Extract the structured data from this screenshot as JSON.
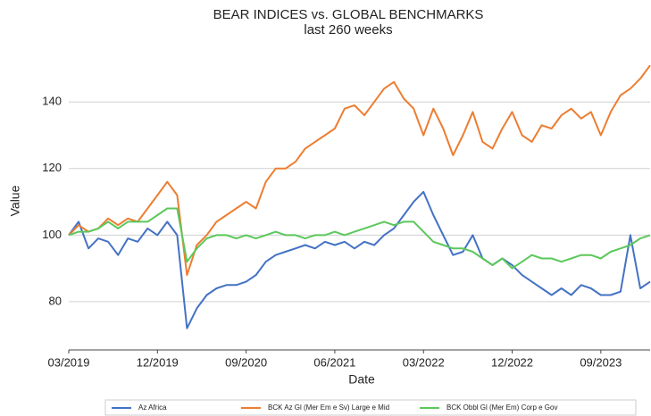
{
  "chart_data": {
    "type": "line",
    "title": "BEAR INDICES vs. GLOBAL BENCHMARKS",
    "subtitle": "last 260 weeks",
    "xlabel": "Date",
    "ylabel": "Value",
    "x": [
      "03/2019",
      "04/2019",
      "05/2019",
      "06/2019",
      "07/2019",
      "08/2019",
      "09/2019",
      "10/2019",
      "11/2019",
      "12/2019",
      "01/2020",
      "02/2020",
      "03/2020",
      "04/2020",
      "05/2020",
      "06/2020",
      "07/2020",
      "08/2020",
      "09/2020",
      "10/2020",
      "11/2020",
      "12/2020",
      "01/2021",
      "02/2021",
      "03/2021",
      "04/2021",
      "05/2021",
      "06/2021",
      "07/2021",
      "08/2021",
      "09/2021",
      "10/2021",
      "11/2021",
      "12/2021",
      "01/2022",
      "02/2022",
      "03/2022",
      "04/2022",
      "05/2022",
      "06/2022",
      "07/2022",
      "08/2022",
      "09/2022",
      "10/2022",
      "11/2022",
      "12/2022",
      "01/2023",
      "02/2023",
      "03/2023",
      "04/2023",
      "05/2023",
      "06/2023",
      "07/2023",
      "08/2023",
      "09/2023",
      "10/2023",
      "11/2023",
      "12/2023",
      "01/2024",
      "02/2024"
    ],
    "xticks": [
      "03/2019",
      "12/2019",
      "09/2020",
      "06/2021",
      "03/2022",
      "12/2022",
      "09/2023"
    ],
    "ylim": [
      65.5,
      154
    ],
    "yticks": [
      80,
      100,
      120,
      140
    ],
    "grid": true,
    "legend": "bottom",
    "series": [
      {
        "name": "Az Africa",
        "color": "#4472c4",
        "values": [
          100,
          104,
          96,
          99,
          98,
          94,
          99,
          98,
          102,
          100,
          104,
          100,
          72,
          78,
          82,
          84,
          85,
          85,
          86,
          88,
          92,
          94,
          95,
          96,
          97,
          96,
          98,
          97,
          98,
          96,
          98,
          97,
          100,
          102,
          106,
          110,
          113,
          106,
          100,
          94,
          95,
          100,
          93,
          91,
          93,
          91,
          88,
          86,
          84,
          82,
          84,
          82,
          85,
          84,
          82,
          82,
          83,
          100,
          84,
          86
        ]
      },
      {
        "name": "BCK Az Gl (Mer Em e Sv) Large e Mid",
        "color": "#ed7d31",
        "values": [
          100,
          103,
          101,
          102,
          105,
          103,
          105,
          104,
          108,
          112,
          116,
          112,
          88,
          97,
          100,
          104,
          106,
          108,
          110,
          108,
          116,
          120,
          120,
          122,
          126,
          128,
          130,
          132,
          138,
          139,
          136,
          140,
          144,
          146,
          141,
          138,
          130,
          138,
          132,
          124,
          130,
          137,
          128,
          126,
          132,
          137,
          130,
          128,
          133,
          132,
          136,
          138,
          135,
          137,
          130,
          137,
          142,
          144,
          147,
          151
        ]
      },
      {
        "name": "BCK Obbl Gl (Mer Em) Corp e Gov",
        "color": "#5bc85b",
        "values": [
          100,
          101,
          101,
          102,
          104,
          102,
          104,
          104,
          104,
          106,
          108,
          108,
          92,
          96,
          99,
          100,
          100,
          99,
          100,
          99,
          100,
          101,
          100,
          100,
          99,
          100,
          100,
          101,
          100,
          101,
          102,
          103,
          104,
          103,
          104,
          104,
          101,
          98,
          97,
          96,
          96,
          95,
          93,
          91,
          93,
          90,
          92,
          94,
          93,
          93,
          92,
          93,
          94,
          94,
          93,
          95,
          96,
          97,
          99,
          100
        ]
      }
    ]
  }
}
